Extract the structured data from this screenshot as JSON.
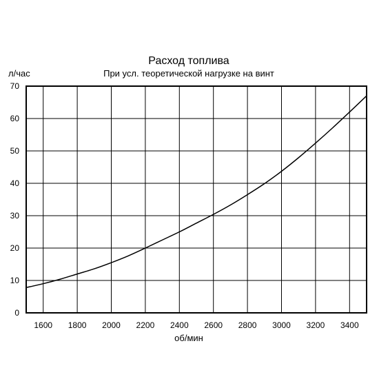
{
  "chart_data": {
    "type": "line",
    "title": "Расход топлива",
    "subtitle": "При усл. теоретической нагрузке на винт",
    "xlabel": "об/мин",
    "ylabel": "л/час",
    "xlim": [
      1500,
      3500
    ],
    "ylim": [
      0,
      70
    ],
    "x_ticks": [
      1600,
      1800,
      2000,
      2200,
      2400,
      2600,
      2800,
      3000,
      3200,
      3400
    ],
    "y_ticks": [
      0,
      10,
      20,
      30,
      40,
      50,
      60,
      70
    ],
    "x_tick_labels": [
      "1600",
      "1800",
      "2000",
      "2200",
      "2400",
      "2600",
      "2800",
      "3000",
      "3200",
      "3400"
    ],
    "y_tick_labels": [
      "0",
      "10",
      "20",
      "30",
      "40",
      "50",
      "60",
      "70"
    ],
    "grid": true,
    "legend": "none",
    "line_color": "#000000",
    "series": [
      {
        "x": [
          1500,
          1600,
          1700,
          1800,
          1900,
          2000,
          2100,
          2200,
          2300,
          2400,
          2500,
          2600,
          2700,
          2800,
          2900,
          3000,
          3100,
          3200,
          3300,
          3400,
          3500
        ],
        "y": [
          7.8,
          9.0,
          10.4,
          12.0,
          13.6,
          15.5,
          17.6,
          20.0,
          22.5,
          25.0,
          27.7,
          30.4,
          33.3,
          36.5,
          39.9,
          43.7,
          47.9,
          52.4,
          57.1,
          62.0,
          67.0
        ]
      }
    ]
  }
}
